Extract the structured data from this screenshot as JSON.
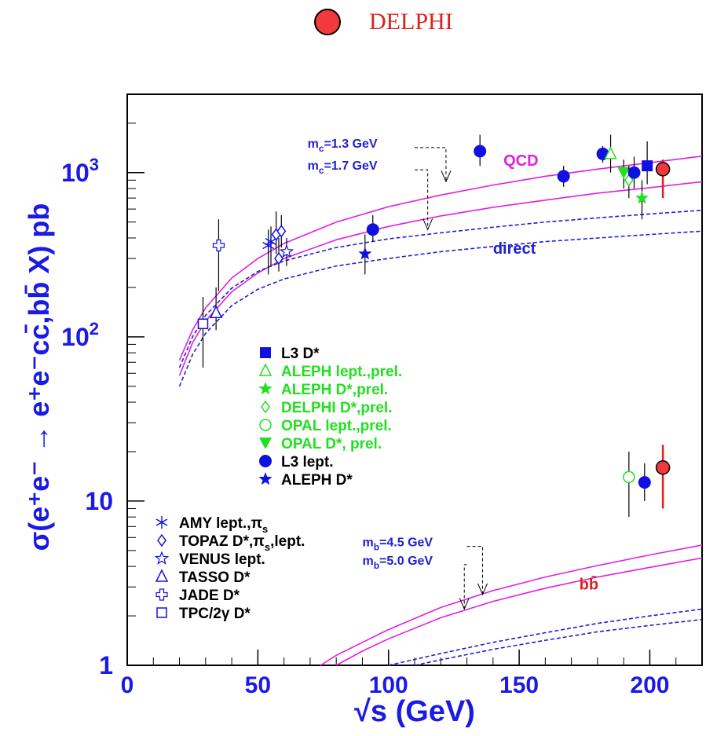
{
  "top_legend": {
    "label": "DELPHI",
    "color": "#f23a3a"
  },
  "chart_data": {
    "type": "scatter",
    "xlabel": "√s (GeV)",
    "ylabel": "σ(e⁺e⁻ → e⁺e⁻cc̄,bb̄ X) pb",
    "xlim": [
      0,
      220
    ],
    "ylim": [
      1,
      3000
    ],
    "y_scale": "log",
    "x_ticks": [
      0,
      50,
      100,
      150,
      200
    ],
    "y_ticks": [
      {
        "value": 1,
        "base": "1",
        "exp": ""
      },
      {
        "value": 10,
        "base": "10",
        "exp": ""
      },
      {
        "value": 100,
        "base": "10",
        "exp": "2"
      },
      {
        "value": 1000,
        "base": "10",
        "exp": "3"
      }
    ],
    "grid": false,
    "curve_labels": [
      {
        "text": "QCD",
        "x": 144,
        "y": 1100,
        "color": "#e020e0"
      },
      {
        "text": "direct",
        "x": 140,
        "y": 320,
        "color": "#2020d0"
      },
      {
        "text": "bb̄",
        "x": 173,
        "y": 2.9,
        "color": "#e02020"
      }
    ],
    "mass_labels": [
      {
        "sub": "c",
        "text": "=1.3 GeV",
        "x": 69,
        "y": 1420
      },
      {
        "sub": "c",
        "text": "=1.7 GeV",
        "x": 69,
        "y": 1040
      },
      {
        "sub": "b",
        "text": "=4.5 GeV",
        "x": 90,
        "y": 5.3
      },
      {
        "sub": "b",
        "text": "=5.0 GeV",
        "x": 90,
        "y": 4.1
      }
    ],
    "curves": [
      {
        "name": "QCD mc=1.3",
        "style": "solid",
        "color": "#e020e0",
        "x": [
          20,
          25,
          30,
          40,
          50,
          60,
          80,
          100,
          120,
          140,
          160,
          180,
          200,
          220
        ],
        "y": [
          72,
          110,
          150,
          228,
          300,
          370,
          500,
          620,
          730,
          840,
          950,
          1050,
          1150,
          1260
        ]
      },
      {
        "name": "QCD mc=1.7",
        "style": "solid",
        "color": "#e020e0",
        "x": [
          20,
          25,
          30,
          40,
          50,
          60,
          80,
          100,
          120,
          140,
          160,
          180,
          200,
          220
        ],
        "y": [
          58,
          92,
          125,
          188,
          245,
          300,
          390,
          470,
          545,
          615,
          680,
          750,
          810,
          880
        ]
      },
      {
        "name": "direct mc=1.3",
        "style": "dashed",
        "color": "#2020d0",
        "x": [
          20,
          25,
          30,
          40,
          50,
          60,
          80,
          100,
          120,
          140,
          160,
          180,
          200,
          220
        ],
        "y": [
          65,
          100,
          135,
          198,
          250,
          290,
          350,
          395,
          430,
          465,
          500,
          530,
          560,
          590
        ]
      },
      {
        "name": "direct mc=1.7",
        "style": "dashed",
        "color": "#2020d0",
        "x": [
          20,
          25,
          30,
          40,
          50,
          60,
          80,
          100,
          120,
          140,
          160,
          180,
          200,
          220
        ],
        "y": [
          50,
          78,
          105,
          155,
          195,
          225,
          270,
          300,
          330,
          355,
          380,
          400,
          420,
          440
        ]
      },
      {
        "name": "bb QCD mb=4.5",
        "style": "solid",
        "color": "#e020e0",
        "x": [
          74,
          80,
          90,
          100,
          120,
          140,
          160,
          180,
          200,
          220
        ],
        "y": [
          1.0,
          1.15,
          1.38,
          1.65,
          2.25,
          2.85,
          3.45,
          4.05,
          4.7,
          5.4
        ]
      },
      {
        "name": "bb QCD mb=5.0",
        "style": "solid",
        "color": "#e020e0",
        "x": [
          80,
          90,
          100,
          120,
          140,
          160,
          180,
          200,
          220
        ],
        "y": [
          1.0,
          1.22,
          1.45,
          1.95,
          2.45,
          2.95,
          3.45,
          3.95,
          4.5
        ]
      },
      {
        "name": "bb direct mb=4.5",
        "style": "dashed",
        "color": "#2020d0",
        "x": [
          100,
          120,
          140,
          160,
          180,
          200,
          220
        ],
        "y": [
          1.0,
          1.18,
          1.38,
          1.58,
          1.8,
          2.0,
          2.2
        ]
      },
      {
        "name": "bb direct mb=5.0",
        "style": "dashed",
        "color": "#2020d0",
        "x": [
          110,
          120,
          140,
          160,
          180,
          200,
          220
        ],
        "y": [
          1.0,
          1.08,
          1.25,
          1.42,
          1.6,
          1.75,
          1.9
        ]
      }
    ],
    "arrows": [
      {
        "from": [
          110,
          1420
        ],
        "to": [
          122,
          880
        ]
      },
      {
        "from": [
          110,
          1040
        ],
        "to": [
          115,
          450
        ]
      },
      {
        "from": [
          130,
          5.3
        ],
        "to": [
          136,
          2.7
        ]
      },
      {
        "from": [
          130,
          4.1
        ],
        "to": [
          129,
          2.2
        ]
      }
    ],
    "legend_main": [
      {
        "label": "L3 D*",
        "marker": "square-filled",
        "color": "#1010e0",
        "text_color": "#000000"
      },
      {
        "label": "ALEPH lept.,prel.",
        "marker": "triangle-open",
        "color": "#20e020",
        "text_color": "#20e020"
      },
      {
        "label": "ALEPH D*,prel.",
        "marker": "star-filled",
        "color": "#20e020",
        "text_color": "#20e020"
      },
      {
        "label": "DELPHI D*,prel.",
        "marker": "diamond-open",
        "color": "#20e020",
        "text_color": "#20e020"
      },
      {
        "label": "OPAL lept.,prel.",
        "marker": "circle-open",
        "color": "#20e020",
        "text_color": "#20e020"
      },
      {
        "label": "OPAL D*, prel.",
        "marker": "triangle-down-filled",
        "color": "#20e020",
        "text_color": "#20e020"
      },
      {
        "label": "L3 lept.",
        "marker": "circle-filled",
        "color": "#1010e0",
        "text_color": "#000000"
      },
      {
        "label": "ALEPH D*",
        "marker": "star-filled",
        "color": "#1010e0",
        "text_color": "#000000"
      }
    ],
    "legend_old": [
      {
        "label": "AMY lept.,π",
        "sub": "s",
        "marker": "asterisk"
      },
      {
        "label": "TOPAZ D*,π",
        "sub": "s",
        "label_after": ",lept.",
        "marker": "diamond-open"
      },
      {
        "label": "VENUS lept.",
        "marker": "star-open"
      },
      {
        "label": "TASSO D*",
        "marker": "triangle-open"
      },
      {
        "label": "JADE D*",
        "marker": "cross-open"
      },
      {
        "label": "TPC/2γ D*",
        "marker": "square-open"
      }
    ],
    "points": [
      {
        "set": "TPC/2γ D*",
        "marker": "square-open",
        "color": "#1010e0",
        "x": 29,
        "y": 120,
        "ylo": 65,
        "yhi": 175
      },
      {
        "set": "TASSO D*",
        "marker": "triangle-open",
        "color": "#1010e0",
        "x": 34,
        "y": 140,
        "ylo": 110,
        "yhi": 200
      },
      {
        "set": "JADE D*",
        "marker": "cross-open",
        "color": "#1010e0",
        "x": 35,
        "y": 360,
        "ylo": 190,
        "yhi": 520
      },
      {
        "set": "AMY lept.,πs",
        "marker": "asterisk",
        "color": "#1010e0",
        "x": 54,
        "y": 360,
        "ylo": 240,
        "yhi": 450
      },
      {
        "set": "AMY lept.,πs",
        "marker": "asterisk",
        "color": "#1010e0",
        "x": 55,
        "y": 380,
        "ylo": 270,
        "yhi": 470
      },
      {
        "set": "TOPAZ D*,πs,lept.",
        "marker": "diamond-open",
        "color": "#1010e0",
        "x": 57,
        "y": 420,
        "ylo": 320,
        "yhi": 580
      },
      {
        "set": "TOPAZ D*,πs,lept.",
        "marker": "diamond-open",
        "color": "#1010e0",
        "x": 58,
        "y": 300,
        "ylo": 250,
        "yhi": 400
      },
      {
        "set": "TOPAZ D*,πs,lept.",
        "marker": "diamond-open",
        "color": "#1010e0",
        "x": 59,
        "y": 440,
        "ylo": 350,
        "yhi": 550
      },
      {
        "set": "VENUS lept.",
        "marker": "star-open",
        "color": "#1010e0",
        "x": 61,
        "y": 330,
        "ylo": 270,
        "yhi": 400
      },
      {
        "set": "ALEPH D*",
        "marker": "star-filled",
        "color": "#1010e0",
        "x": 91,
        "y": 320,
        "ylo": 240,
        "yhi": 420
      },
      {
        "set": "L3 lept.",
        "marker": "circle-filled",
        "color": "#1010e0",
        "x": 94,
        "y": 450,
        "ylo": 380,
        "yhi": 550
      },
      {
        "set": "L3 lept.",
        "marker": "circle-filled",
        "color": "#1010e0",
        "x": 135,
        "y": 1350,
        "ylo": 1100,
        "yhi": 1700
      },
      {
        "set": "L3 lept.",
        "marker": "circle-filled",
        "color": "#1010e0",
        "x": 167,
        "y": 950,
        "ylo": 820,
        "yhi": 1100
      },
      {
        "set": "L3 lept.",
        "marker": "circle-filled",
        "color": "#1010e0",
        "x": 182,
        "y": 1300,
        "ylo": 1150,
        "yhi": 1450
      },
      {
        "set": "ALEPH lept.,prel.",
        "marker": "triangle-open",
        "color": "#20e020",
        "x": 185,
        "y": 1300,
        "ylo": 1000,
        "yhi": 1700
      },
      {
        "set": "OPAL D*, prel.",
        "marker": "triangle-down-filled",
        "color": "#20e020",
        "x": 190,
        "y": 1000,
        "ylo": 800,
        "yhi": 1200
      },
      {
        "set": "DELPHI D*,prel.",
        "marker": "diamond-open",
        "color": "#20e020",
        "x": 192,
        "y": 900,
        "ylo": 700,
        "yhi": 1100
      },
      {
        "set": "L3 lept.",
        "marker": "circle-filled",
        "color": "#1010e0",
        "x": 194,
        "y": 1000,
        "ylo": 800,
        "yhi": 1250
      },
      {
        "set": "ALEPH D*,prel.",
        "marker": "star-filled",
        "color": "#20e020",
        "x": 197,
        "y": 700,
        "ylo": 520,
        "yhi": 900
      },
      {
        "set": "L3 D*",
        "marker": "square-filled",
        "color": "#1010e0",
        "x": 199,
        "y": 1100,
        "ylo": 850,
        "yhi": 1550
      },
      {
        "set": "DELPHI",
        "marker": "circle-red",
        "color": "#f23a3a",
        "x": 205,
        "y": 1050,
        "ylo": 700,
        "yhi": 1200,
        "bar_color": "#e02020"
      },
      {
        "set": "OPAL lept.,prel.",
        "marker": "circle-open",
        "color": "#20e020",
        "x": 192,
        "y": 14,
        "ylo": 8,
        "yhi": 20
      },
      {
        "set": "L3 lept.",
        "marker": "circle-filled",
        "color": "#1010e0",
        "x": 198,
        "y": 13,
        "ylo": 10,
        "yhi": 17
      },
      {
        "set": "DELPHI",
        "marker": "circle-red",
        "color": "#f23a3a",
        "x": 205,
        "y": 16,
        "ylo": 9,
        "yhi": 22,
        "bar_color": "#e02020"
      }
    ]
  }
}
